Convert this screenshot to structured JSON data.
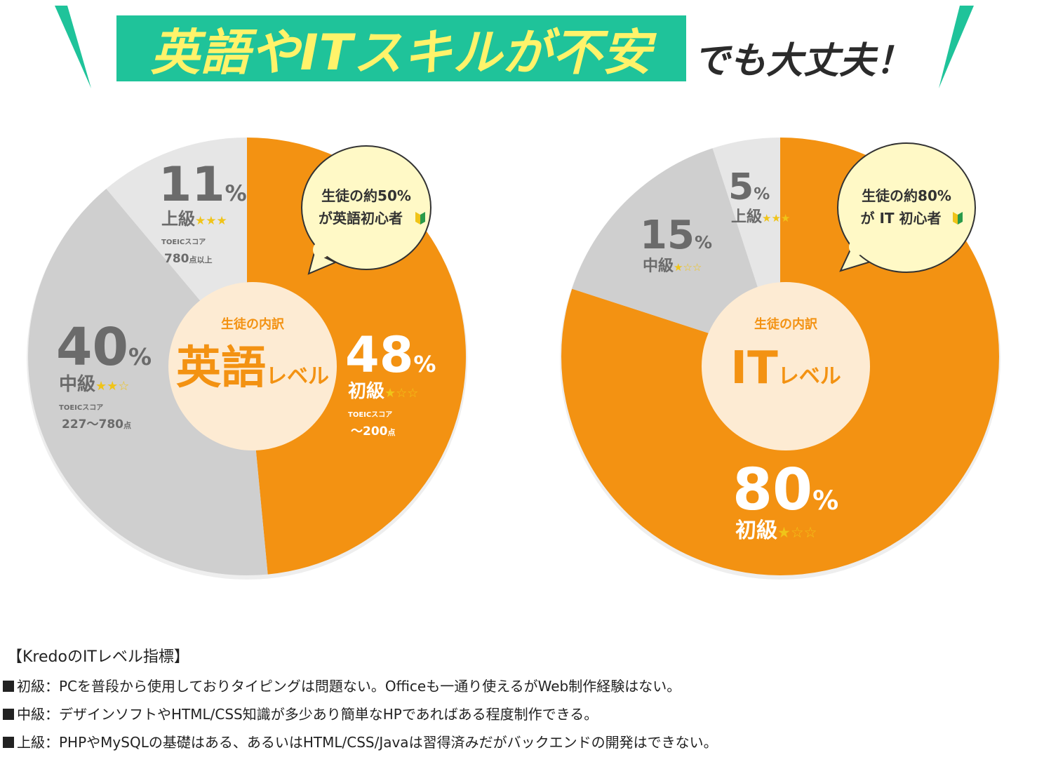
{
  "header": {
    "title_highlight": "英語やITスキルが不安",
    "title_rest": "でも大丈夫！",
    "colors": {
      "accent": "#1fc39a",
      "highlight_text": "#fff36a"
    }
  },
  "chart_data": [
    {
      "type": "pie",
      "center_label": {
        "caption": "生徒の内訳",
        "big": "英語",
        "small": "レベル"
      },
      "bubble": {
        "line1": "生徒の約50%",
        "line2": "が英語初心者"
      },
      "slices": [
        {
          "value": 48,
          "pct_label": "48",
          "pct_sign": "%",
          "level": "初級",
          "stars": "★☆☆",
          "toeic_label": "TOEICスコア",
          "score": "～200",
          "score_unit": "点",
          "color": "#f39212"
        },
        {
          "value": 40,
          "pct_label": "40",
          "pct_sign": "%",
          "level": "中級",
          "stars": "★★☆",
          "toeic_label": "TOEICスコア",
          "score": "227～780",
          "score_unit": "点",
          "color": "#cfcfcf"
        },
        {
          "value": 11,
          "pct_label": "11",
          "pct_sign": "%",
          "level": "上級",
          "stars": "★★★",
          "toeic_label": "TOEICスコア",
          "score": "780",
          "score_unit": "点以上",
          "color": "#e6e6e6"
        }
      ]
    },
    {
      "type": "pie",
      "center_label": {
        "caption": "生徒の内訳",
        "big": "IT",
        "small": "レベル"
      },
      "bubble": {
        "line1": "生徒の約80%",
        "line2": "が IT 初心者"
      },
      "slices": [
        {
          "value": 80,
          "pct_label": "80",
          "pct_sign": "%",
          "level": "初級",
          "stars": "★☆☆",
          "color": "#f39212"
        },
        {
          "value": 15,
          "pct_label": "15",
          "pct_sign": "%",
          "level": "中級",
          "stars": "★☆☆",
          "color": "#cfcfcf"
        },
        {
          "value": 5,
          "pct_label": "5",
          "pct_sign": "%",
          "level": "上級",
          "stars": "★★★",
          "color": "#e6e6e6"
        }
      ]
    }
  ],
  "notes": {
    "title": "【KredoのITレベル指標】",
    "items": [
      "初級：PCを普段から使用しておりタイピングは問題ない。Officeも一通り使えるがWeb制作経験はない。",
      "中級：デザインソフトやHTML/CSS知識が多少あり簡単なHPであればある程度制作できる。",
      "上級：PHPやMySQLの基礎はある、あるいはHTML/CSS/Javaは習得済みだがバックエンドの開発はできない。"
    ]
  }
}
